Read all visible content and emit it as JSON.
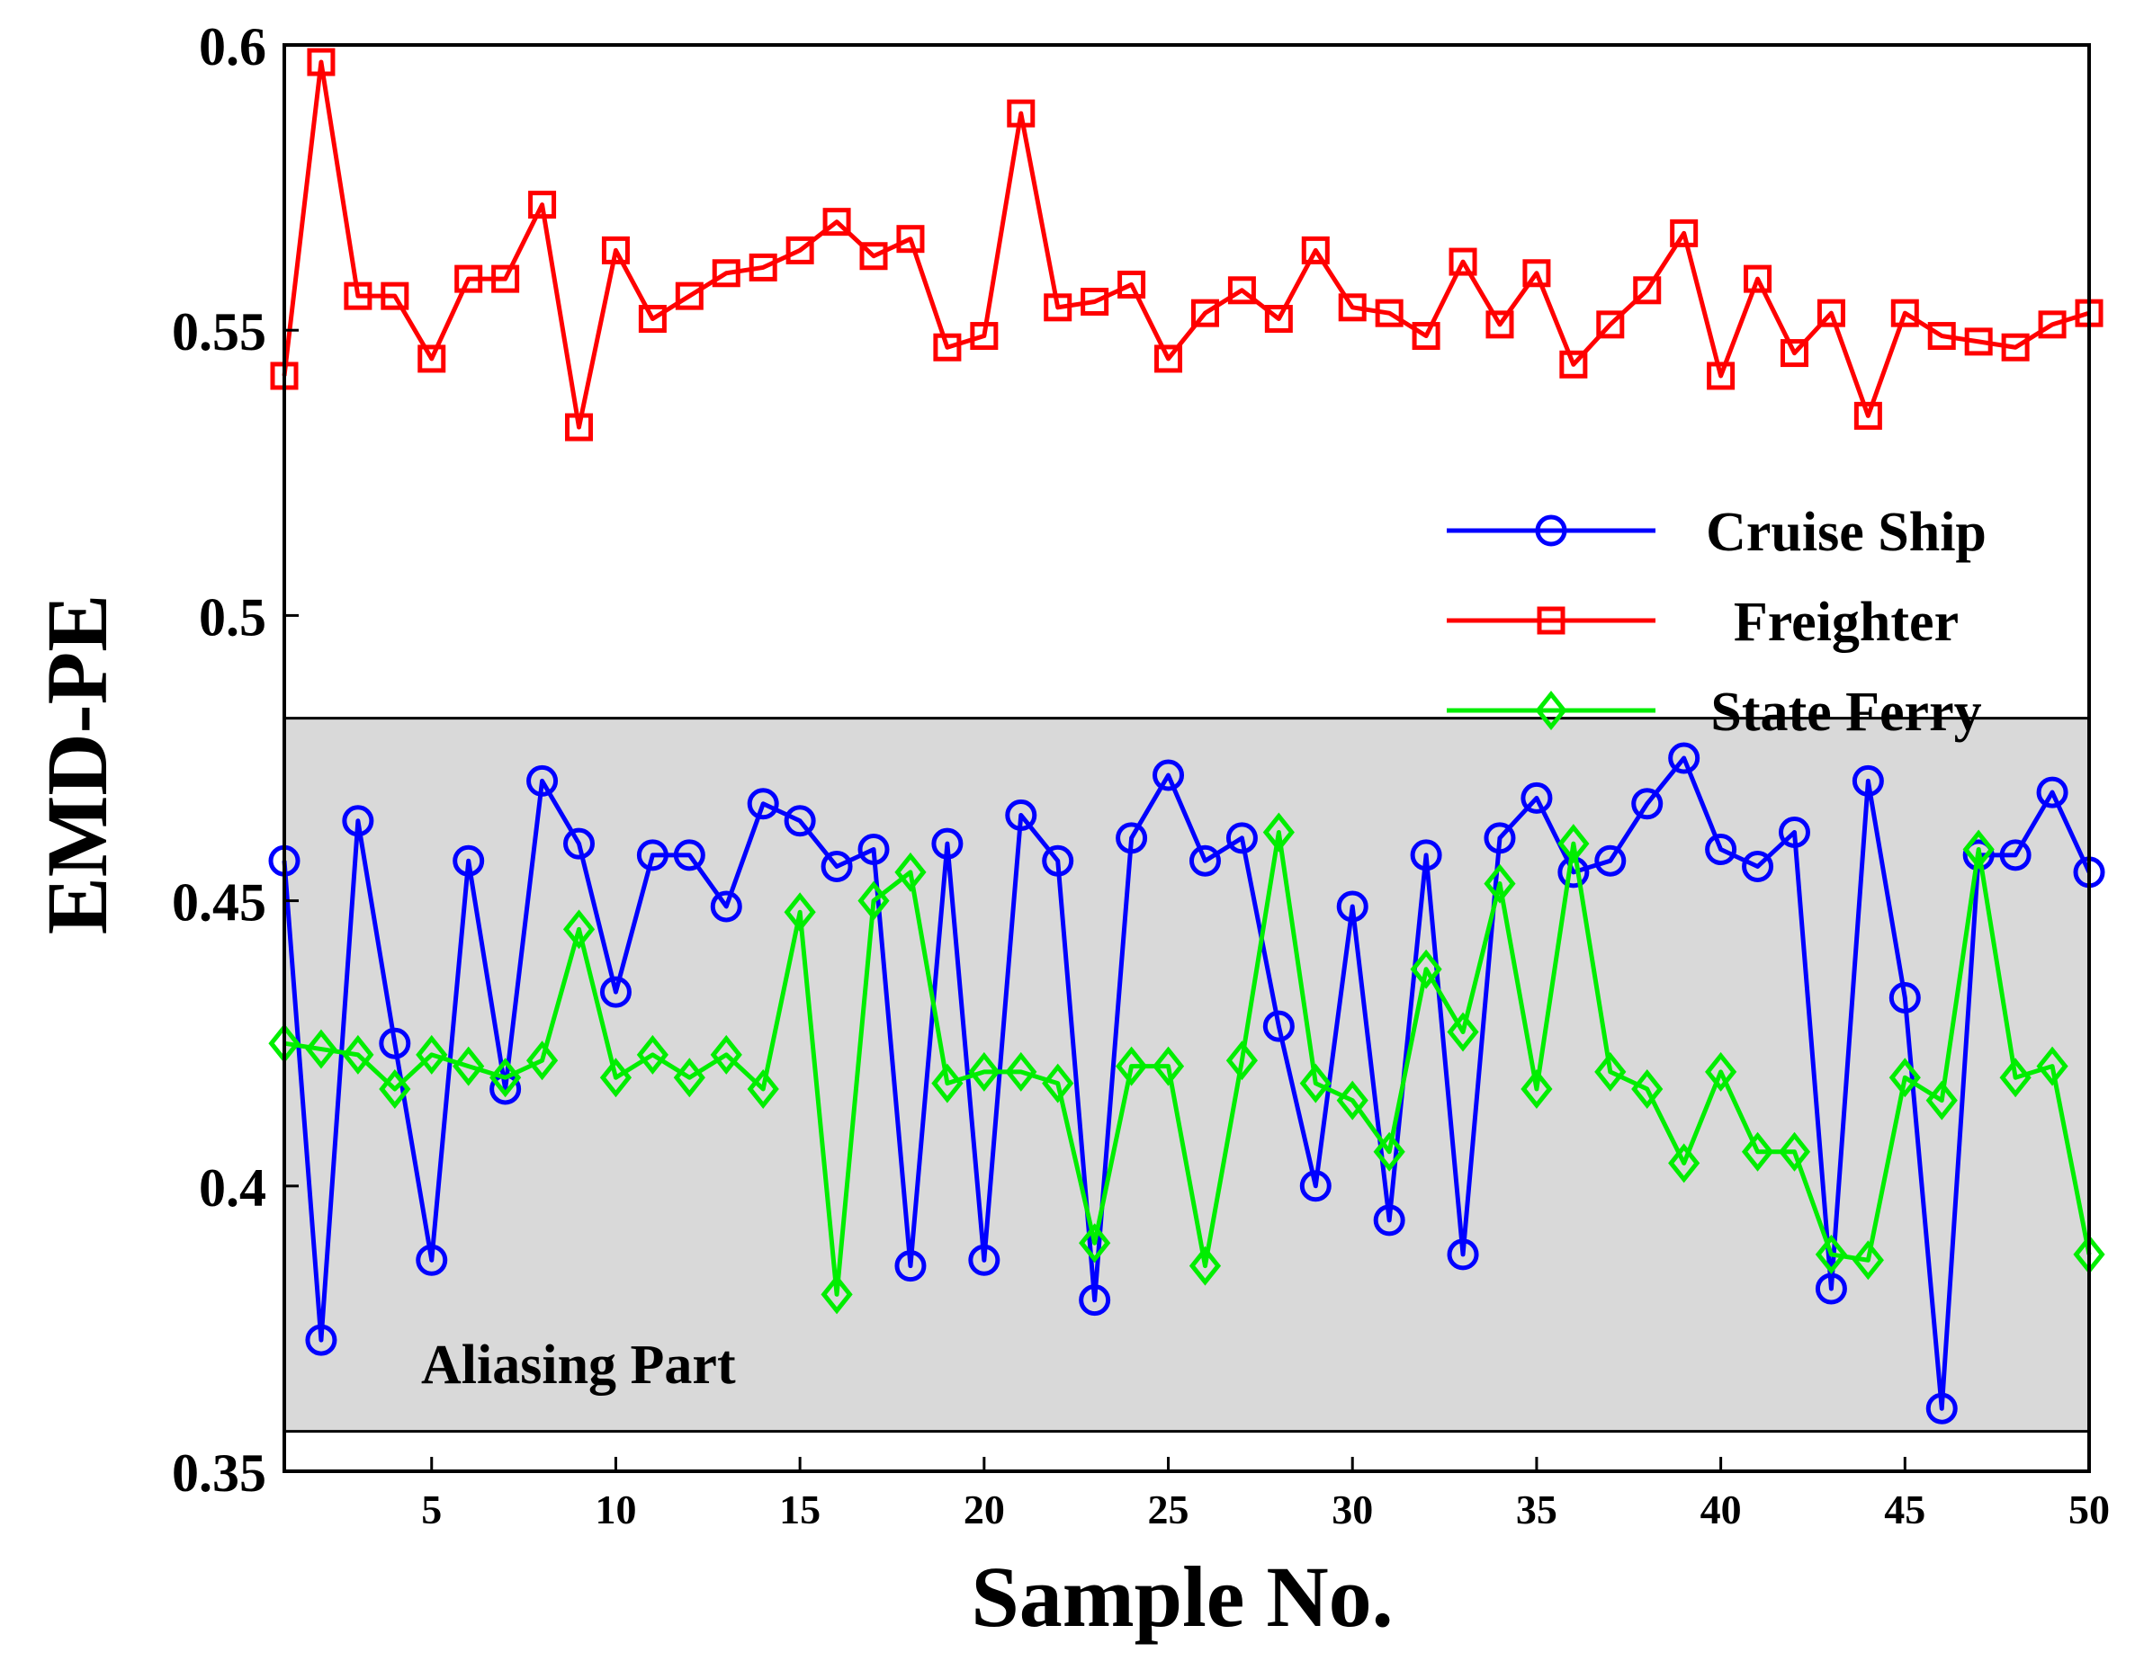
{
  "chart_data": {
    "type": "line",
    "xlabel": "Sample No.",
    "ylabel": "EMD-PE",
    "xlim": [
      1,
      50
    ],
    "ylim": [
      0.35,
      0.6
    ],
    "xticks": [
      5,
      10,
      15,
      20,
      25,
      30,
      35,
      40,
      45,
      50
    ],
    "yticks": [
      0.35,
      0.4,
      0.45,
      0.5,
      0.55,
      0.6
    ],
    "ytick_labels": [
      "0.35",
      "0.4",
      "0.45",
      "0.5",
      "0.55",
      "0.6"
    ],
    "shaded_region": {
      "label": "Aliasing Part",
      "y_range": [
        0.357,
        0.482
      ],
      "color": "#d9d9d9"
    },
    "x": [
      1,
      2,
      3,
      4,
      5,
      6,
      7,
      8,
      9,
      10,
      11,
      12,
      13,
      14,
      15,
      16,
      17,
      18,
      19,
      20,
      21,
      22,
      23,
      24,
      25,
      26,
      27,
      28,
      29,
      30,
      31,
      32,
      33,
      34,
      35,
      36,
      37,
      38,
      39,
      40,
      41,
      42,
      43,
      44,
      45,
      46,
      47,
      48,
      49,
      50
    ],
    "legend_position": "right",
    "series": [
      {
        "name": "Cruise Ship",
        "color": "#0000ff",
        "marker": "circle",
        "values": [
          0.457,
          0.373,
          0.464,
          0.425,
          0.387,
          0.457,
          0.417,
          0.471,
          0.46,
          0.434,
          0.458,
          0.458,
          0.449,
          0.467,
          0.464,
          0.456,
          0.459,
          0.386,
          0.46,
          0.387,
          0.465,
          0.457,
          0.38,
          0.461,
          0.472,
          0.457,
          0.461,
          0.428,
          0.4,
          0.449,
          0.394,
          0.458,
          0.388,
          0.461,
          0.468,
          0.455,
          0.457,
          0.467,
          0.475,
          0.459,
          0.456,
          0.462,
          0.382,
          0.471,
          0.433,
          0.361,
          0.458,
          0.458,
          0.469,
          0.455
        ]
      },
      {
        "name": "Freighter",
        "color": "#ff0000",
        "marker": "square",
        "values": [
          0.542,
          0.597,
          0.556,
          0.556,
          0.545,
          0.559,
          0.559,
          0.572,
          0.533,
          0.564,
          0.552,
          0.556,
          0.56,
          0.561,
          0.564,
          0.569,
          0.563,
          0.566,
          0.547,
          0.549,
          0.588,
          0.554,
          0.555,
          0.558,
          0.545,
          0.553,
          0.557,
          0.552,
          0.564,
          0.554,
          0.553,
          0.549,
          0.562,
          0.551,
          0.56,
          0.544,
          0.551,
          0.557,
          0.567,
          0.542,
          0.559,
          0.546,
          0.553,
          0.535,
          0.553,
          0.549,
          0.548,
          0.547,
          0.551,
          0.553
        ]
      },
      {
        "name": "State Ferry",
        "color": "#00ee00",
        "marker": "diamond",
        "values": [
          0.425,
          0.424,
          0.423,
          0.417,
          0.423,
          0.421,
          0.419,
          0.422,
          0.445,
          0.419,
          0.423,
          0.419,
          0.423,
          0.417,
          0.448,
          0.381,
          0.45,
          0.455,
          0.418,
          0.42,
          0.42,
          0.418,
          0.39,
          0.421,
          0.421,
          0.386,
          0.422,
          0.462,
          0.418,
          0.415,
          0.406,
          0.438,
          0.427,
          0.453,
          0.417,
          0.46,
          0.42,
          0.417,
          0.404,
          0.42,
          0.406,
          0.406,
          0.388,
          0.387,
          0.419,
          0.415,
          0.459,
          0.419,
          0.421,
          0.388
        ]
      }
    ]
  }
}
